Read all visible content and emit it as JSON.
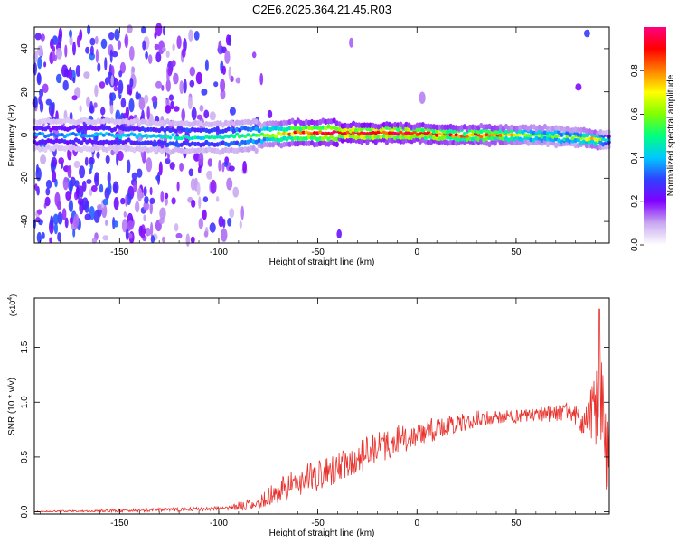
{
  "figure": {
    "title": "C2E6.2025.364.21.45.R03"
  },
  "chart_data": [
    {
      "type": "heatmap",
      "xlabel": "Height of straight line (km)",
      "ylabel": "Frequency (Hz)",
      "xlim": [
        -193,
        97
      ],
      "ylim": [
        -50,
        50
      ],
      "x_ticks": [
        -150,
        -100,
        -50,
        0,
        50
      ],
      "y_ticks": [
        -40,
        -20,
        0,
        20,
        40
      ],
      "grid": false,
      "colorbar": {
        "label": "Normalized spectral amplitude",
        "range": [
          0,
          1
        ],
        "ticks": [
          "0.0",
          "0.2",
          "0.4",
          "0.6",
          "0.8"
        ],
        "colors": [
          "#ffffff",
          "#c8a8f0",
          "#8000ff",
          "#3040ff",
          "#00c8ff",
          "#00ff80",
          "#80ff00",
          "#ffff00",
          "#ff8000",
          "#ff0000",
          "#ff0080"
        ]
      },
      "ridge": {
        "x": [
          -190,
          -150,
          -120,
          -100,
          -80,
          -60,
          -40,
          -20,
          0,
          20,
          40,
          60,
          80,
          90,
          95
        ],
        "center_freq": [
          0,
          0,
          -1,
          -1,
          0,
          1,
          1,
          1,
          1,
          0,
          0,
          0,
          -1,
          -2,
          -2
        ],
        "peak_amplitude": [
          0.35,
          0.4,
          0.45,
          0.45,
          0.55,
          0.85,
          0.95,
          0.95,
          0.9,
          0.85,
          0.8,
          0.6,
          0.55,
          0.75,
          0.4
        ]
      }
    },
    {
      "type": "line",
      "xlabel": "Height of straight line (km)",
      "ylabel": "SNR (10 * v/v)",
      "y_multiplier": "(x10^4)",
      "xlim": [
        -193,
        97
      ],
      "ylim": [
        -0.02,
        1.95
      ],
      "x_ticks": [
        -150,
        -100,
        -50,
        0,
        50
      ],
      "y_ticks": [
        "0.0",
        "0.5",
        "1.0",
        "1.5"
      ],
      "grid": false,
      "series": [
        {
          "color": "#e8312c",
          "envelope": {
            "x": [
              -193,
              -150,
              -120,
              -100,
              -90,
              -80,
              -70,
              -60,
              -50,
              -40,
              -30,
              -20,
              -10,
              0,
              10,
              20,
              30,
              40,
              50,
              60,
              70,
              75,
              80,
              85,
              88,
              90,
              93,
              95
            ],
            "y": [
              0.0,
              0.01,
              0.02,
              0.03,
              0.05,
              0.08,
              0.18,
              0.28,
              0.33,
              0.4,
              0.5,
              0.58,
              0.65,
              0.7,
              0.76,
              0.8,
              0.85,
              0.87,
              0.87,
              0.88,
              0.9,
              0.9,
              0.88,
              0.85,
              0.9,
              1.0,
              1.15,
              0.6
            ]
          },
          "spread": {
            "x": [
              -193,
              -100,
              -80,
              -70,
              -50,
              -20,
              0,
              40,
              60,
              80,
              88,
              92,
              95
            ],
            "y": [
              0.008,
              0.02,
              0.06,
              0.12,
              0.14,
              0.16,
              0.12,
              0.06,
              0.06,
              0.1,
              0.25,
              0.55,
              0.45
            ]
          },
          "peak": {
            "x": 92,
            "y": 1.85
          },
          "seed": 71
        }
      ]
    }
  ]
}
